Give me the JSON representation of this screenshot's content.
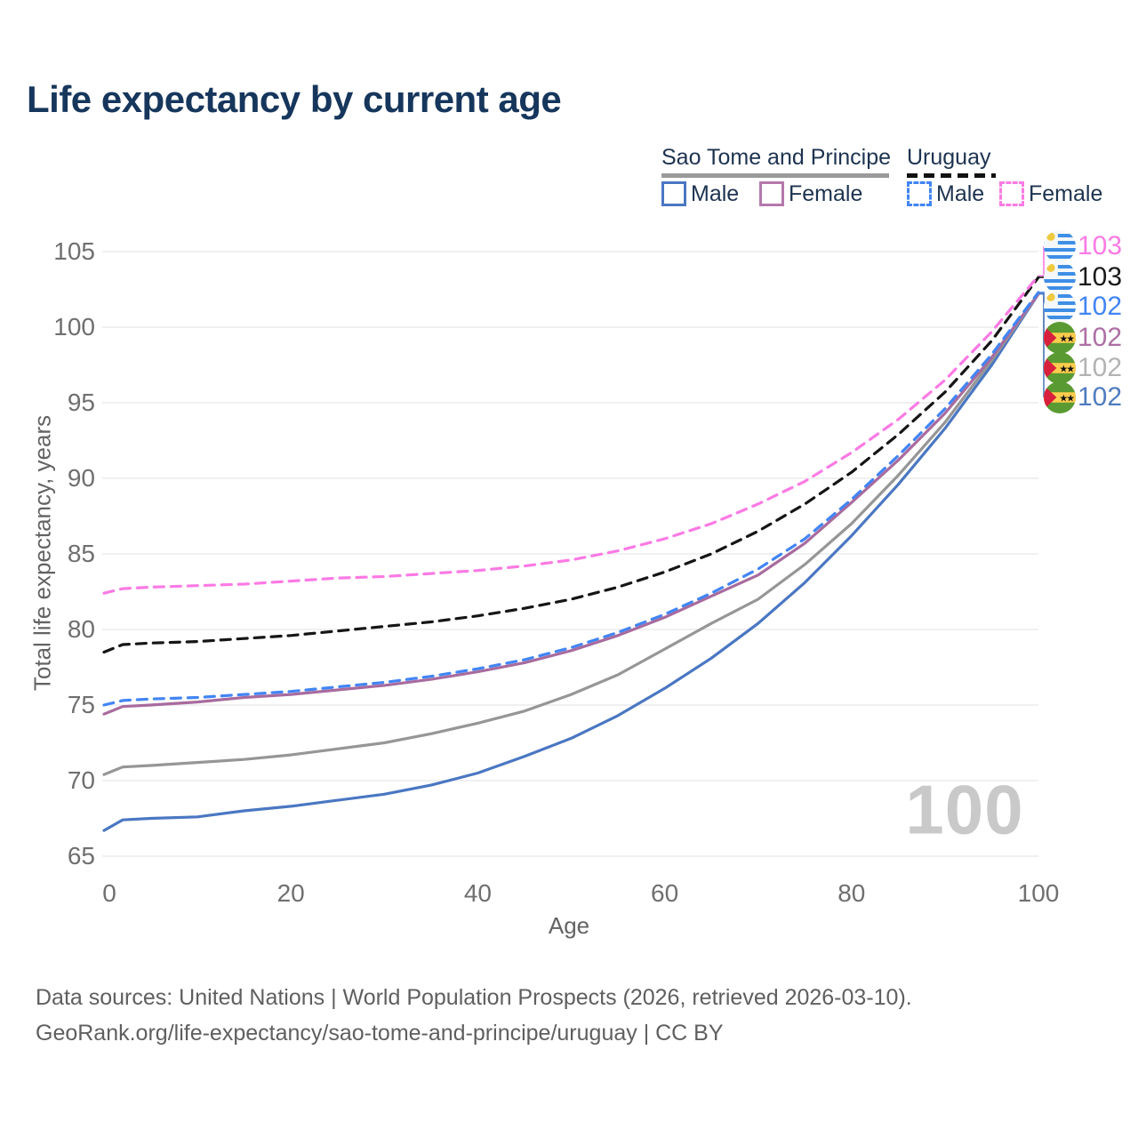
{
  "title": "Life expectancy by current age",
  "legend": {
    "groups": [
      {
        "label": "Sao Tome and Principe",
        "underline_style": "solid",
        "underline_color": "#9a9a9a",
        "items": [
          {
            "label": "Male",
            "color": "#4a77c2",
            "dashed": false
          },
          {
            "label": "Female",
            "color": "#b478ac",
            "dashed": false
          }
        ]
      },
      {
        "label": "Uruguay",
        "underline_style": "dashed",
        "underline_color": "#111111",
        "items": [
          {
            "label": "Male",
            "color": "#4285f4",
            "dashed": true
          },
          {
            "label": "Female",
            "color": "#fb7ae4",
            "dashed": true
          }
        ]
      }
    ]
  },
  "chart_data": {
    "type": "line",
    "title": "Life expectancy by current age",
    "xlabel": "Age",
    "ylabel": "Total life expectancy, years",
    "xlim": [
      0,
      100
    ],
    "ylim": [
      65,
      105
    ],
    "xticks": [
      0,
      20,
      40,
      60,
      80,
      100
    ],
    "yticks": [
      105,
      100,
      95,
      90,
      85,
      80,
      75,
      70,
      65
    ],
    "grid": "horizontal",
    "legend_position": "top-right",
    "x": [
      0,
      2,
      5,
      10,
      15,
      20,
      25,
      30,
      35,
      40,
      45,
      50,
      55,
      60,
      65,
      70,
      75,
      80,
      85,
      90,
      95,
      100
    ],
    "series": [
      {
        "key": "stp_male",
        "name": "Sao Tome and Principe Male",
        "color": "#4a77c2",
        "dashed": false,
        "values": [
          66.7,
          67.4,
          67.5,
          67.6,
          68.0,
          68.3,
          68.7,
          69.1,
          69.7,
          70.5,
          71.6,
          72.8,
          74.3,
          76.1,
          78.1,
          80.4,
          83.1,
          86.2,
          89.6,
          93.3,
          97.5,
          102.2
        ]
      },
      {
        "key": "stp_both",
        "name": "Sao Tome and Principe Both sexes",
        "color": "#969696",
        "dashed": false,
        "values": [
          70.4,
          70.9,
          71.0,
          71.2,
          71.4,
          71.7,
          72.1,
          72.5,
          73.1,
          73.8,
          74.6,
          75.7,
          77.0,
          78.7,
          80.4,
          82.0,
          84.3,
          87.0,
          90.2,
          93.7,
          97.8,
          102.2
        ]
      },
      {
        "key": "stp_female",
        "name": "Sao Tome and Principe Female",
        "color": "#a86b9e",
        "dashed": false,
        "values": [
          74.4,
          74.9,
          75.0,
          75.2,
          75.5,
          75.7,
          76.0,
          76.3,
          76.7,
          77.2,
          77.8,
          78.6,
          79.6,
          80.8,
          82.2,
          83.6,
          85.7,
          88.4,
          91.2,
          94.3,
          98.0,
          102.2
        ]
      },
      {
        "key": "ury_male",
        "name": "Uruguay Male",
        "color": "#4285f4",
        "dashed": true,
        "values": [
          75.0,
          75.3,
          75.4,
          75.5,
          75.7,
          75.9,
          76.2,
          76.5,
          76.9,
          77.4,
          78.0,
          78.8,
          79.8,
          81.0,
          82.4,
          84.0,
          86.0,
          88.6,
          91.5,
          94.6,
          98.2,
          102.3
        ]
      },
      {
        "key": "ury_both",
        "name": "Uruguay Both sexes",
        "color": "#151515",
        "dashed": true,
        "values": [
          78.5,
          79.0,
          79.1,
          79.2,
          79.4,
          79.6,
          79.9,
          80.2,
          80.5,
          80.9,
          81.4,
          82.0,
          82.8,
          83.8,
          85.0,
          86.5,
          88.3,
          90.4,
          92.9,
          95.7,
          99.1,
          103.3
        ]
      },
      {
        "key": "ury_female",
        "name": "Uruguay Female",
        "color": "#fb7ae4",
        "dashed": true,
        "values": [
          82.4,
          82.7,
          82.8,
          82.9,
          83.0,
          83.2,
          83.4,
          83.5,
          83.7,
          83.9,
          84.2,
          84.6,
          85.2,
          86.0,
          87.0,
          88.3,
          89.8,
          91.7,
          93.9,
          96.5,
          99.7,
          103.4
        ]
      }
    ]
  },
  "end_labels": [
    {
      "value": "103",
      "color": "#fb7ae4",
      "flag": "uruguay",
      "series_key": "ury_female"
    },
    {
      "value": "103",
      "color": "#1a1a1a",
      "flag": "uruguay",
      "series_key": "ury_both"
    },
    {
      "value": "102",
      "color": "#4285f4",
      "flag": "uruguay",
      "series_key": "ury_male"
    },
    {
      "value": "102",
      "color": "#ad6fa4",
      "flag": "sao_tome",
      "series_key": "stp_female"
    },
    {
      "value": "102",
      "color": "#b3b3b3",
      "flag": "sao_tome",
      "series_key": "stp_both"
    },
    {
      "value": "102",
      "color": "#4f7cbe",
      "flag": "sao_tome",
      "series_key": "stp_male"
    }
  ],
  "watermark": "100",
  "footer": {
    "line1": "Data sources: United Nations | World Population Prospects (2026, retrieved 2026-03-10).",
    "line2": "GeoRank.org/life-expectancy/sao-tome-and-principe/uruguay | CC BY"
  }
}
